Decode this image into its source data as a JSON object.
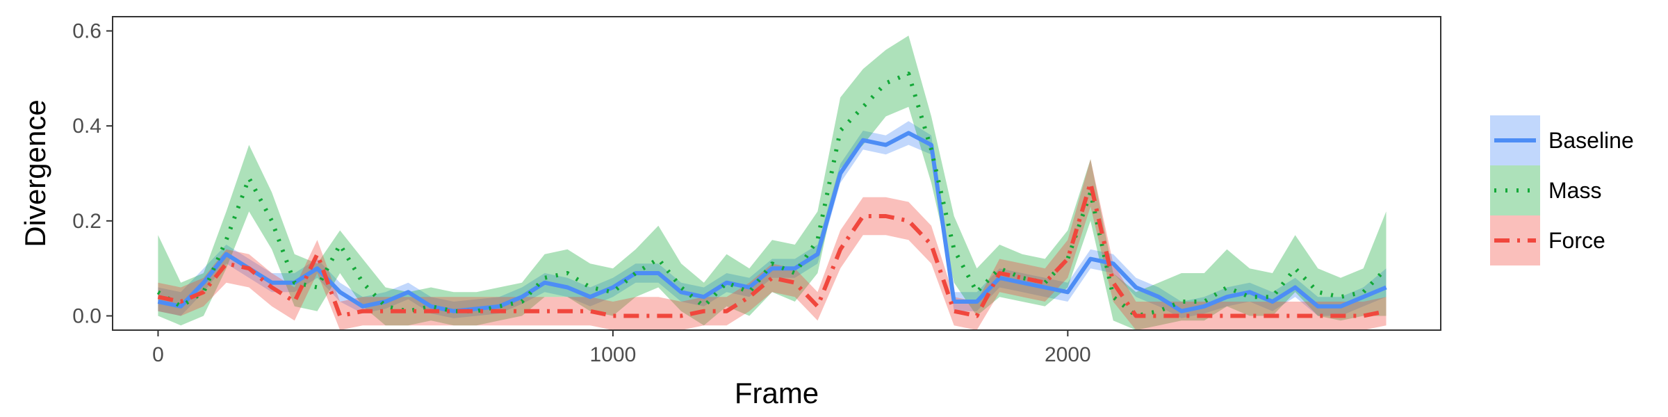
{
  "chart_data": {
    "type": "line",
    "xlabel": "Frame",
    "ylabel": "Divergence",
    "xlim": [
      -100,
      2820
    ],
    "ylim": [
      -0.03,
      0.63
    ],
    "x_ticks": [
      0,
      1000,
      2000
    ],
    "y_ticks": [
      0.0,
      0.2,
      0.4,
      0.6
    ],
    "x_tick_labels": [
      "0",
      "1000",
      "2000"
    ],
    "y_tick_labels": [
      "0.0",
      "0.2",
      "0.4",
      "0.6"
    ],
    "grid": false,
    "legend": "right",
    "x": [
      0,
      50,
      100,
      150,
      200,
      250,
      300,
      350,
      400,
      450,
      500,
      550,
      600,
      650,
      700,
      750,
      800,
      850,
      900,
      950,
      1000,
      1050,
      1100,
      1150,
      1200,
      1250,
      1300,
      1350,
      1400,
      1450,
      1500,
      1550,
      1600,
      1650,
      1700,
      1750,
      1800,
      1850,
      1900,
      1950,
      2000,
      2050,
      2100,
      2150,
      2200,
      2250,
      2300,
      2350,
      2400,
      2450,
      2500,
      2550,
      2600,
      2650,
      2700
    ],
    "series": [
      {
        "name": "Baseline",
        "color": "#4d8df5",
        "dash": "solid",
        "values": [
          0.03,
          0.02,
          0.07,
          0.13,
          0.1,
          0.07,
          0.07,
          0.1,
          0.05,
          0.02,
          0.03,
          0.05,
          0.02,
          0.01,
          0.015,
          0.02,
          0.04,
          0.07,
          0.06,
          0.04,
          0.06,
          0.09,
          0.09,
          0.05,
          0.04,
          0.07,
          0.06,
          0.1,
          0.1,
          0.13,
          0.3,
          0.37,
          0.36,
          0.385,
          0.36,
          0.03,
          0.03,
          0.08,
          0.07,
          0.06,
          0.05,
          0.12,
          0.11,
          0.06,
          0.04,
          0.01,
          0.02,
          0.04,
          0.05,
          0.03,
          0.06,
          0.02,
          0.02,
          0.04,
          0.06
        ],
        "lower": [
          0.01,
          0.0,
          0.05,
          0.11,
          0.08,
          0.05,
          0.05,
          0.08,
          0.03,
          0.005,
          0.015,
          0.035,
          0.005,
          -0.005,
          0.0,
          0.005,
          0.025,
          0.05,
          0.04,
          0.02,
          0.04,
          0.07,
          0.07,
          0.03,
          0.02,
          0.05,
          0.04,
          0.08,
          0.08,
          0.11,
          0.28,
          0.35,
          0.34,
          0.36,
          0.34,
          0.01,
          0.01,
          0.06,
          0.05,
          0.04,
          0.03,
          0.1,
          0.09,
          0.04,
          0.02,
          -0.005,
          0.005,
          0.02,
          0.03,
          0.01,
          0.04,
          0.0,
          0.0,
          0.02,
          0.04
        ],
        "upper": [
          0.06,
          0.05,
          0.1,
          0.15,
          0.12,
          0.09,
          0.09,
          0.12,
          0.07,
          0.04,
          0.05,
          0.07,
          0.04,
          0.03,
          0.035,
          0.04,
          0.06,
          0.09,
          0.08,
          0.06,
          0.08,
          0.11,
          0.11,
          0.07,
          0.06,
          0.09,
          0.08,
          0.12,
          0.12,
          0.15,
          0.32,
          0.39,
          0.38,
          0.41,
          0.38,
          0.05,
          0.05,
          0.1,
          0.09,
          0.08,
          0.07,
          0.14,
          0.13,
          0.08,
          0.06,
          0.03,
          0.04,
          0.06,
          0.07,
          0.05,
          0.08,
          0.04,
          0.04,
          0.06,
          0.1
        ]
      },
      {
        "name": "Mass",
        "color": "#13a838",
        "dash": "dotted",
        "values": [
          0.05,
          0.02,
          0.05,
          0.16,
          0.29,
          0.2,
          0.07,
          0.06,
          0.15,
          0.07,
          0.02,
          0.01,
          0.02,
          0.01,
          0.01,
          0.02,
          0.03,
          0.08,
          0.09,
          0.06,
          0.05,
          0.09,
          0.12,
          0.06,
          0.02,
          0.07,
          0.05,
          0.11,
          0.09,
          0.16,
          0.39,
          0.44,
          0.49,
          0.51,
          0.35,
          0.14,
          0.05,
          0.1,
          0.08,
          0.07,
          0.12,
          0.26,
          0.04,
          0.0,
          0.01,
          0.03,
          0.03,
          0.06,
          0.04,
          0.04,
          0.1,
          0.05,
          0.04,
          0.05,
          0.1
        ],
        "lower": [
          0.0,
          -0.02,
          0.0,
          0.1,
          0.22,
          0.14,
          0.02,
          0.01,
          0.09,
          0.02,
          -0.02,
          -0.02,
          -0.01,
          -0.02,
          -0.02,
          -0.01,
          0.0,
          0.04,
          0.04,
          0.01,
          0.0,
          0.04,
          0.06,
          0.01,
          -0.02,
          0.02,
          0.0,
          0.05,
          0.03,
          0.09,
          0.31,
          0.36,
          0.42,
          0.44,
          0.28,
          0.07,
          0.0,
          0.04,
          0.03,
          0.02,
          0.06,
          0.2,
          -0.01,
          -0.03,
          -0.02,
          -0.01,
          -0.01,
          0.02,
          0.0,
          0.0,
          0.05,
          0.0,
          -0.01,
          0.0,
          0.0
        ],
        "upper": [
          0.17,
          0.07,
          0.09,
          0.22,
          0.36,
          0.26,
          0.13,
          0.11,
          0.18,
          0.12,
          0.06,
          0.05,
          0.06,
          0.05,
          0.05,
          0.06,
          0.07,
          0.13,
          0.14,
          0.11,
          0.1,
          0.14,
          0.19,
          0.11,
          0.07,
          0.13,
          0.1,
          0.16,
          0.15,
          0.22,
          0.46,
          0.52,
          0.56,
          0.59,
          0.42,
          0.21,
          0.1,
          0.15,
          0.13,
          0.12,
          0.18,
          0.33,
          0.09,
          0.05,
          0.07,
          0.09,
          0.09,
          0.14,
          0.1,
          0.09,
          0.17,
          0.1,
          0.08,
          0.1,
          0.22
        ]
      },
      {
        "name": "Force",
        "color": "#f0473d",
        "dash": "dashdot",
        "values": [
          0.04,
          0.03,
          0.05,
          0.11,
          0.1,
          0.06,
          0.03,
          0.13,
          0.0,
          0.01,
          0.01,
          0.01,
          0.01,
          0.01,
          0.01,
          0.01,
          0.01,
          0.01,
          0.01,
          0.01,
          0.0,
          0.0,
          0.0,
          0.0,
          0.01,
          0.01,
          0.04,
          0.08,
          0.07,
          0.02,
          0.14,
          0.21,
          0.21,
          0.2,
          0.15,
          0.01,
          0.0,
          0.09,
          0.08,
          0.07,
          0.12,
          0.28,
          0.07,
          0.0,
          0.0,
          0.0,
          0.0,
          0.0,
          0.0,
          0.0,
          0.0,
          0.0,
          0.0,
          0.0,
          0.01
        ],
        "lower": [
          0.01,
          0.0,
          0.02,
          0.07,
          0.06,
          0.02,
          -0.01,
          0.09,
          -0.03,
          -0.02,
          -0.02,
          -0.02,
          -0.02,
          -0.02,
          -0.02,
          -0.02,
          -0.02,
          -0.02,
          -0.02,
          -0.02,
          -0.03,
          -0.03,
          -0.03,
          -0.03,
          -0.02,
          -0.02,
          0.01,
          0.05,
          0.04,
          -0.01,
          0.1,
          0.17,
          0.17,
          0.16,
          0.11,
          -0.02,
          -0.03,
          0.05,
          0.04,
          0.03,
          0.08,
          0.23,
          0.03,
          -0.03,
          -0.03,
          -0.03,
          -0.03,
          -0.03,
          -0.03,
          -0.03,
          -0.03,
          -0.03,
          -0.03,
          -0.03,
          -0.02
        ],
        "upper": [
          0.07,
          0.06,
          0.08,
          0.14,
          0.13,
          0.09,
          0.06,
          0.16,
          0.03,
          0.04,
          0.04,
          0.04,
          0.04,
          0.04,
          0.04,
          0.04,
          0.04,
          0.04,
          0.04,
          0.04,
          0.03,
          0.04,
          0.04,
          0.03,
          0.04,
          0.04,
          0.07,
          0.11,
          0.1,
          0.05,
          0.18,
          0.25,
          0.25,
          0.24,
          0.19,
          0.04,
          0.03,
          0.12,
          0.11,
          0.1,
          0.16,
          0.33,
          0.11,
          0.03,
          0.03,
          0.03,
          0.03,
          0.03,
          0.03,
          0.03,
          0.03,
          0.03,
          0.03,
          0.03,
          0.04
        ]
      }
    ]
  }
}
